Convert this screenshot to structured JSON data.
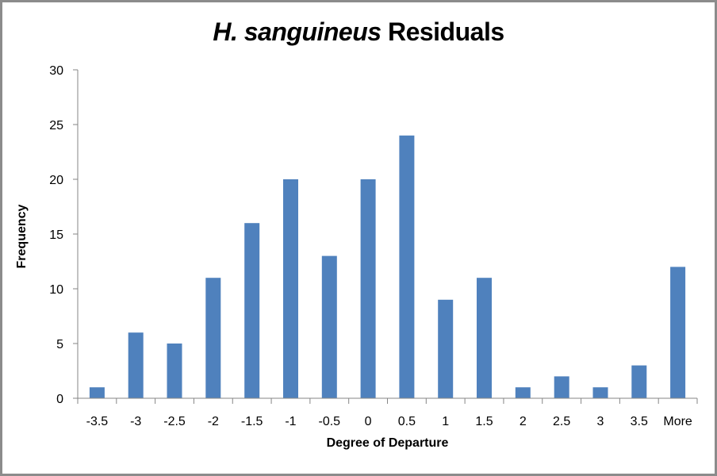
{
  "chart_data": {
    "type": "bar",
    "title": "H. sanguineus Residuals",
    "title_italic_part": "H. sanguineus",
    "title_regular_part": "Residuals",
    "xlabel": "Degree of Departure",
    "ylabel": "Frequency",
    "categories": [
      "-3.5",
      "-3",
      "-2.5",
      "-2",
      "-1.5",
      "-1",
      "-0.5",
      "0",
      "0.5",
      "1",
      "1.5",
      "2",
      "2.5",
      "3",
      "3.5",
      "More"
    ],
    "values": [
      1,
      6,
      5,
      11,
      16,
      20,
      13,
      20,
      24,
      9,
      11,
      1,
      2,
      1,
      3,
      12
    ],
    "ylim": [
      0,
      30
    ],
    "yticks": [
      0,
      5,
      10,
      15,
      20,
      25,
      30
    ],
    "grid": false,
    "legend": null,
    "bar_color": "#4F81BD",
    "axis_color": "#868686"
  }
}
